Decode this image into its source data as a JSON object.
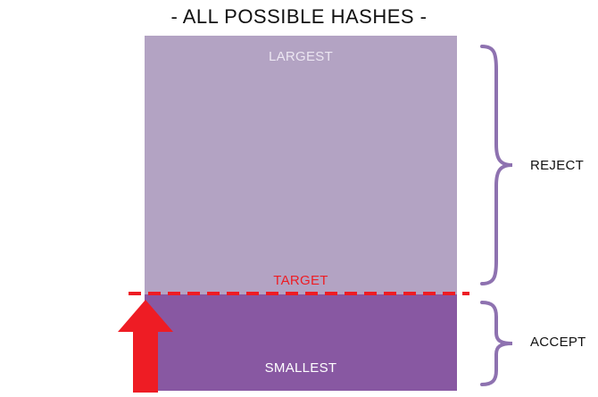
{
  "diagram": {
    "title": "- ALL POSSIBLE HASHES -",
    "largest_label": "LARGEST",
    "target_label": "TARGET",
    "smallest_label": "SMALLEST",
    "reject_label": "REJECT",
    "accept_label": "ACCEPT"
  },
  "colors": {
    "reject_region": "#b3a3c3",
    "accept_region": "#8858a2",
    "target": "#ee1c24",
    "brace": "#8e72b0",
    "text": "#111111"
  }
}
